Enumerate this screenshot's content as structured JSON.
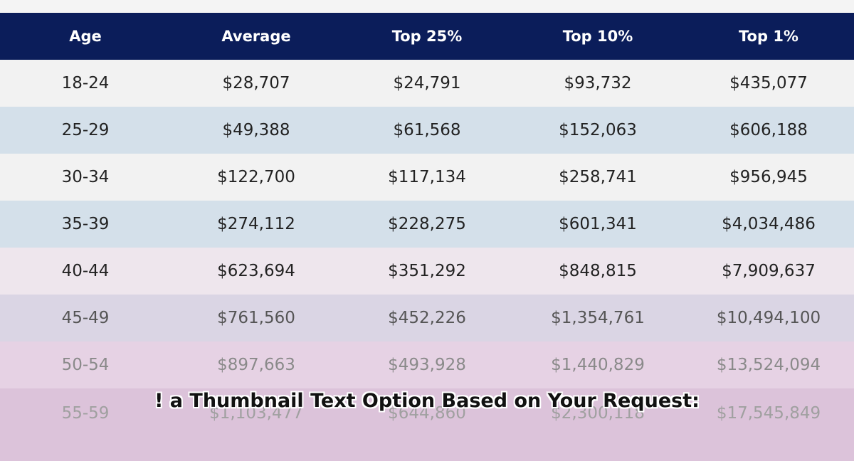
{
  "table": {
    "header": [
      "Age",
      "Average",
      "Top 25%",
      "Top 10%",
      "Top 1%"
    ],
    "rows": [
      [
        "18-24",
        "$28,707",
        "$24,791",
        "$93,732",
        "$435,077"
      ],
      [
        "25-29",
        "$49,388",
        "$61,568",
        "$152,063",
        "$606,188"
      ],
      [
        "30-34",
        "$122,700",
        "$117,134",
        "$258,741",
        "$956,945"
      ],
      [
        "35-39",
        "$274,112",
        "$228,275",
        "$601,341",
        "$4,034,486"
      ],
      [
        "40-44",
        "$623,694",
        "$351,292",
        "$848,815",
        "$7,909,637"
      ],
      [
        "45-49",
        "$761,560",
        "$452,226",
        "$1,354,761",
        "$10,494,100"
      ],
      [
        "50-54",
        "$897,663",
        "$493,928",
        "$1,440,829",
        "$13,524,094"
      ],
      [
        "55-59",
        "$1,103,477",
        "$644,860",
        "$2,300,118",
        "$17,545,849"
      ]
    ]
  },
  "overlay_text": "! a Thumbnail Text Option Based on Your Request:"
}
